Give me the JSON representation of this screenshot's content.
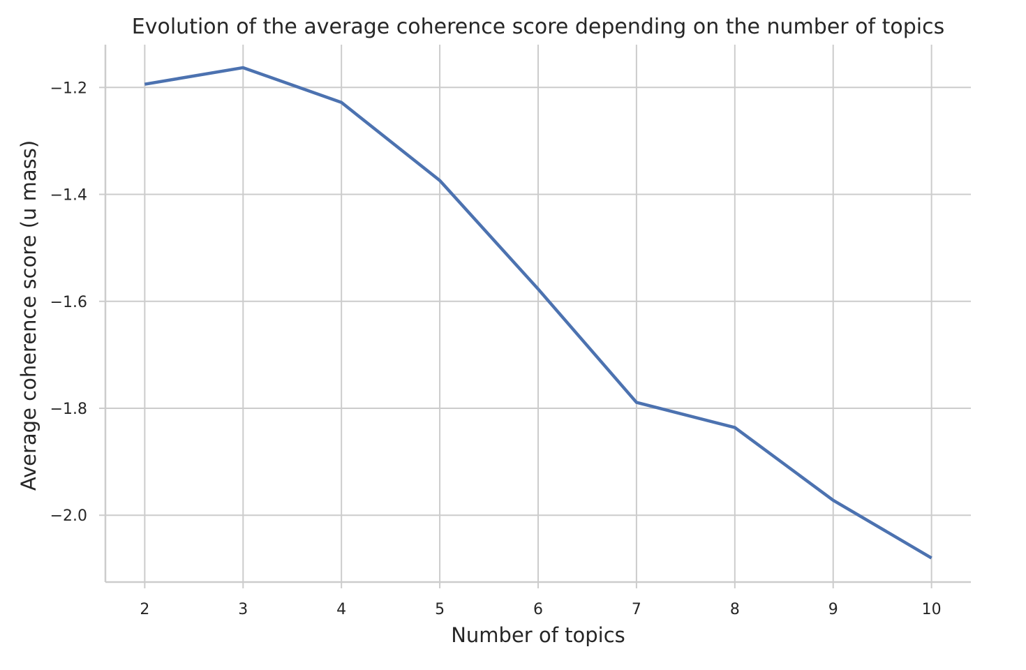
{
  "chart_data": {
    "type": "line",
    "title": "Evolution of the average coherence score depending on the number of topics",
    "xlabel": "Number of topics",
    "ylabel": "Average coherence score (u mass)",
    "x": [
      2,
      3,
      4,
      5,
      6,
      7,
      8,
      9,
      10
    ],
    "series": [
      {
        "values": [
          -1.194,
          -1.163,
          -1.228,
          -1.374,
          -1.577,
          -1.789,
          -1.836,
          -1.972,
          -2.08
        ]
      }
    ],
    "x_ticks": [
      "2",
      "3",
      "4",
      "5",
      "6",
      "7",
      "8",
      "9",
      "10"
    ],
    "y_ticks": [
      -1.2,
      -1.4,
      -1.6,
      -1.8,
      -2.0
    ],
    "y_tick_labels": [
      "−1.2",
      "−1.4",
      "−1.6",
      "−1.8",
      "−2.0"
    ],
    "xlim": [
      1.6,
      10.4
    ],
    "ylim": [
      -2.125,
      -1.12
    ],
    "grid": true,
    "colors": {
      "line": "#4c72b0",
      "grid": "#cccccc",
      "text": "#262626"
    }
  }
}
